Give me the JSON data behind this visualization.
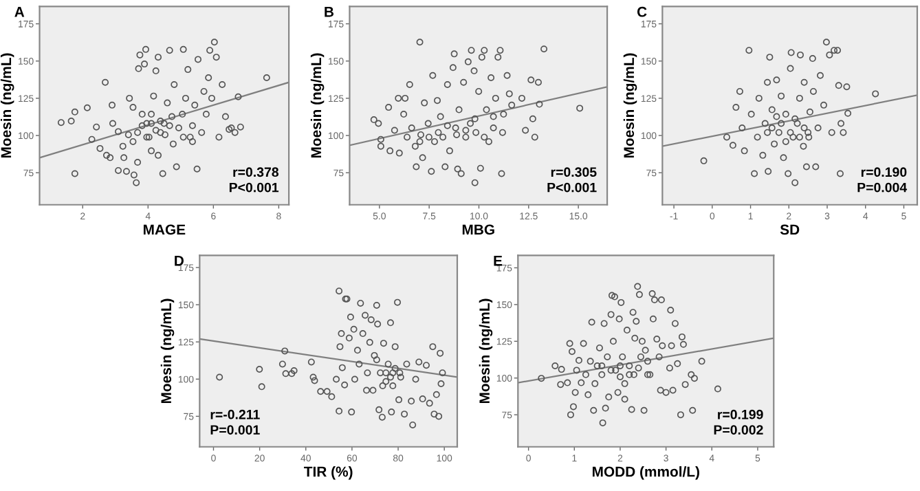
{
  "chart_data": [
    {
      "type": "scatter",
      "title": "A",
      "xlabel": "MAGE",
      "ylabel": "Moesin (ng/mL)",
      "xlim": [
        0.68,
        8.31
      ],
      "ylim": [
        53.5,
        186.7
      ],
      "xticks": [
        2,
        4,
        6,
        8
      ],
      "yticks": [
        75,
        100,
        125,
        150,
        175
      ],
      "grid": false,
      "legend": false,
      "annotations": [
        "r=0.378",
        "P<0.001"
      ],
      "series": [
        {
          "marker": "circle",
          "color": "#555555",
          "x": [
            1.34,
            1.65,
            1.76,
            1.76,
            2.14,
            2.28,
            2.42,
            2.53,
            2.69,
            2.73,
            2.84,
            2.9,
            2.92,
            3.09,
            3.09,
            3.23,
            3.26,
            3.34,
            3.43,
            3.54,
            3.57,
            3.64,
            3.68,
            3.71,
            3.75,
            3.89,
            3.93,
            3.96,
            4.03,
            4.1,
            4.17,
            4.24,
            4.31,
            4.38,
            4.45,
            4.49,
            4.59,
            4.66,
            4.73,
            4.77,
            4.8,
            4.87,
            4.94,
            5.05,
            5.08,
            5.15,
            5.22,
            5.29,
            5.36,
            5.43,
            5.5,
            5.53,
            5.64,
            5.71,
            5.78,
            5.85,
            5.89,
            5.95,
            6.03,
            6.09,
            6.17,
            6.27,
            6.37,
            6.48,
            6.55,
            6.66,
            6.76,
            6.83,
            7.63,
            3.68,
            3.82,
            3.96,
            4.1,
            4.24,
            4.38,
            4.52,
            4.66,
            3.4,
            3.54,
            3.82,
            4.1,
            4.31,
            5.08,
            5.36
          ],
          "values": [
            108.7,
            109.7,
            115.8,
            74.4,
            118.6,
            97.4,
            105.7,
            91.3,
            135.7,
            86.7,
            85.1,
            120.4,
            108.1,
            102.6,
            76.5,
            92.8,
            85.1,
            75.9,
            125,
            118.9,
            73.5,
            68.3,
            82,
            144.9,
            154.1,
            148,
            157.8,
            108.1,
            98.9,
            114.3,
            126.5,
            143.4,
            152.6,
            102,
            74.4,
            108.1,
            121.9,
            157.2,
            112.7,
            94.3,
            134.2,
            79,
            105.1,
            114.3,
            157.8,
            125,
            144.3,
            98.9,
            106.6,
            120.4,
            77.5,
            151.1,
            102,
            129.6,
            114.3,
            138.8,
            157.2,
            125,
            162.7,
            152.6,
            98.9,
            134.2,
            112.7,
            104.1,
            105.1,
            102,
            126,
            105.7,
            138.8,
            102,
            106.6,
            98.9,
            108.1,
            103.5,
            109.7,
            100.5,
            106.6,
            100.5,
            95.9,
            114.3,
            89.7,
            86.7,
            98.9,
            95.9
          ]
        },
        {
          "type": "line",
          "color": "#7f7f7f",
          "x": [
            0.68,
            8.31
          ],
          "values": [
            85.1,
            135.7
          ]
        }
      ]
    },
    {
      "type": "scatter",
      "title": "B",
      "xlabel": "MBG",
      "ylabel": "Moesin (ng/mL)",
      "xlim": [
        3.5,
        16.45
      ],
      "ylim": [
        53.5,
        186.7
      ],
      "xticks": [
        {
          "value": 5,
          "label": "5.0"
        },
        {
          "value": 7.5,
          "label": "7.5"
        },
        {
          "value": 10,
          "label": "10.0"
        },
        {
          "value": 12.5,
          "label": "12.5"
        },
        {
          "value": 15,
          "label": "15.0"
        }
      ],
      "yticks": [
        75,
        100,
        125,
        150,
        175
      ],
      "grid": false,
      "legend": false,
      "annotations": [
        "r=0.305",
        "P<0.001"
      ],
      "series": [
        {
          "marker": "circle",
          "color": "#555555",
          "x": [
            4.72,
            4.95,
            5.07,
            5.07,
            5.46,
            5.53,
            5.76,
            5.95,
            6.0,
            6.22,
            6.29,
            6.39,
            6.52,
            6.62,
            6.8,
            6.85,
            7.03,
            7.08,
            7.17,
            7.26,
            7.45,
            7.61,
            7.68,
            7.77,
            7.91,
            8.07,
            8.19,
            8.3,
            8.42,
            8.53,
            8.7,
            8.76,
            8.83,
            8.93,
            9.0,
            9.11,
            9.23,
            9.34,
            9.46,
            9.57,
            9.62,
            9.76,
            9.8,
            9.85,
            9.99,
            10.08,
            10.15,
            10.27,
            10.38,
            10.5,
            10.61,
            10.73,
            10.84,
            10.96,
            11.07,
            11.14,
            11.24,
            11.42,
            11.53,
            11.65,
            12.16,
            12.34,
            12.62,
            12.71,
            12.81,
            12.99,
            13.04,
            13.27,
            15.07,
            7.96,
            8.42,
            8.88,
            9.34,
            9.8,
            10.27,
            7.49,
            7.03,
            10.73,
            11.19
          ],
          "values": [
            110.6,
            108.1,
            97.4,
            92.8,
            118.9,
            89.7,
            103.5,
            125,
            88.2,
            114.3,
            125,
            98.9,
            134.2,
            105.1,
            92.8,
            79,
            162.7,
            100.5,
            85.1,
            121.9,
            108.1,
            75.9,
            140.3,
            95.9,
            123.5,
            112.7,
            98.9,
            79,
            134.2,
            89.7,
            145.6,
            154.8,
            105.1,
            77.5,
            117.3,
            74.4,
            135.7,
            98.9,
            149.5,
            108.1,
            157.2,
            143.4,
            68.3,
            102,
            129.6,
            78,
            152.6,
            157.2,
            117.3,
            95.9,
            138.8,
            105.1,
            125,
            152.6,
            157.2,
            74.4,
            114.3,
            140.3,
            128,
            120.4,
            125,
            103.5,
            137.3,
            111.2,
            98.9,
            135.7,
            121,
            158.1,
            118.3,
            102,
            106.6,
            100.5,
            103.5,
            111.2,
            98.9,
            98.9,
            95.9,
            112.7,
            102
          ]
        },
        {
          "type": "line",
          "color": "#7f7f7f",
          "x": [
            3.5,
            16.45
          ],
          "values": [
            93.4,
            132.7
          ]
        }
      ]
    },
    {
      "type": "scatter",
      "title": "C",
      "xlabel": "SD",
      "ylabel": "Moesin (ng/mL)",
      "xlim": [
        -1.3,
        5.35
      ],
      "ylim": [
        53.5,
        186.7
      ],
      "xticks": [
        -1,
        0,
        1,
        2,
        3,
        4,
        5
      ],
      "yticks": [
        75,
        100,
        125,
        150,
        175
      ],
      "grid": false,
      "legend": false,
      "annotations": [
        "r=0.190",
        "P=0.004"
      ],
      "series": [
        {
          "marker": "circle",
          "color": "#555555",
          "x": [
            -0.22,
            0.38,
            0.54,
            0.62,
            0.72,
            0.78,
            0.84,
            0.96,
            1.02,
            1.1,
            1.18,
            1.22,
            1.32,
            1.38,
            1.44,
            1.46,
            1.5,
            1.56,
            1.62,
            1.68,
            1.74,
            1.8,
            1.86,
            1.92,
            1.98,
            2.04,
            2.06,
            2.11,
            2.16,
            2.22,
            2.28,
            2.3,
            2.38,
            2.4,
            2.46,
            2.5,
            2.55,
            2.62,
            2.64,
            2.7,
            2.76,
            2.82,
            2.91,
            2.98,
            3.06,
            3.12,
            3.18,
            3.27,
            3.3,
            3.34,
            3.36,
            3.42,
            3.51,
            3.54,
            4.26,
            1.56,
            1.8,
            2.04,
            2.28,
            1.92,
            2.16,
            2.4,
            2.52,
            1.68,
            1.44
          ],
          "values": [
            83,
            98.9,
            93.4,
            118.9,
            129.6,
            105.1,
            89.7,
            157.2,
            114.3,
            74.4,
            98.9,
            125,
            86.7,
            108.1,
            135.7,
            75.9,
            152.6,
            117.3,
            94.3,
            137.3,
            102,
            126.5,
            85.1,
            114.3,
            74.4,
            145,
            155.7,
            98.9,
            68.3,
            108.1,
            125,
            154.1,
            92.8,
            135.7,
            79,
            102,
            115.8,
            151.7,
            129.6,
            79,
            105.1,
            140.3,
            120.4,
            162.7,
            154.1,
            102,
            157.2,
            157.2,
            133.6,
            74.4,
            108.1,
            102,
            132.7,
            114.9,
            128,
            105.1,
            108.1,
            102,
            98.9,
            95.9,
            111.2,
            105.1,
            98.9,
            112.7,
            102
          ]
        },
        {
          "type": "line",
          "color": "#7f7f7f",
          "x": [
            -1.3,
            5.35
          ],
          "values": [
            92.8,
            127.1
          ]
        }
      ]
    },
    {
      "type": "scatter",
      "title": "D",
      "xlabel": "TIR (%)",
      "ylabel": "Moesin (ng/mL)",
      "xlim": [
        -6,
        105.6
      ],
      "ylim": [
        54.5,
        183.2
      ],
      "xticks": [
        0,
        20,
        40,
        60,
        80,
        100
      ],
      "yticks": [
        75,
        100,
        125,
        150,
        175
      ],
      "grid": false,
      "legend": false,
      "annotations": [
        "r=-0.211",
        "P=0.001"
      ],
      "series": [
        {
          "marker": "circle",
          "color": "#555555",
          "x": [
            2.6,
            19.9,
            20.9,
            29.9,
            30.9,
            31.3,
            33.9,
            34.9,
            42.4,
            43.2,
            43.8,
            46.4,
            49.2,
            51.2,
            53.2,
            54.4,
            54.4,
            54.8,
            55.4,
            55.8,
            56.8,
            57.2,
            57.8,
            58.8,
            59.4,
            59.8,
            60.8,
            61.2,
            62.4,
            63.1,
            63.7,
            64.7,
            65.7,
            66.3,
            66.7,
            67.7,
            68.3,
            69.1,
            69.7,
            70.7,
            71.1,
            71.7,
            72.3,
            73.1,
            73.7,
            74.7,
            75.7,
            76.7,
            77.1,
            77.7,
            78.7,
            79.7,
            80.3,
            81.1,
            82.7,
            83.7,
            85.7,
            86.3,
            87.6,
            89.0,
            90.6,
            92.2,
            93.6,
            95.0,
            95.6,
            96.6,
            97.6,
            98.2,
            98.6,
            99.2,
            74.7,
            76.7,
            78.7,
            73.3,
            80.7,
            77.7,
            70.7
          ],
          "values": [
            101.3,
            106.6,
            94.9,
            110.1,
            118.9,
            103.7,
            103.7,
            105.7,
            111.5,
            101.3,
            99,
            91.7,
            91.7,
            88.2,
            99.9,
            159.2,
            78.5,
            121.8,
            130.6,
            107.7,
            96.1,
            153.9,
            153.9,
            127.6,
            141.7,
            77.9,
            133.5,
            99.9,
            119.4,
            110.1,
            151,
            130.6,
            142.9,
            92.5,
            104.2,
            124.7,
            139.9,
            92.5,
            115.9,
            149.6,
            137,
            79.4,
            104.2,
            74.4,
            124.1,
            98.4,
            110.1,
            137.9,
            77.9,
            104.2,
            121.8,
            151.6,
            86.1,
            101.3,
            76.5,
            110.1,
            85.2,
            69.2,
            99.9,
            111.5,
            86.7,
            109.3,
            83.8,
            121.8,
            76.5,
            89.6,
            75,
            117.4,
            96.9,
            104.2,
            104.2,
            101.3,
            107.2,
            95.5,
            104.2,
            95.5,
            113
          ]
        },
        {
          "type": "line",
          "color": "#7f7f7f",
          "x": [
            -6,
            105.6
          ],
          "values": [
            127,
            101.3
          ]
        }
      ]
    },
    {
      "type": "scatter",
      "title": "E",
      "xlabel": "MODD (mmol/L)",
      "ylabel": "Moesin (ng/mL)",
      "xlim": [
        -0.23,
        5.35
      ],
      "ylim": [
        53.2,
        183.5
      ],
      "xticks": [
        0,
        1,
        2,
        3,
        4,
        5
      ],
      "yticks": [
        75,
        100,
        125,
        150,
        175
      ],
      "grid": false,
      "legend": false,
      "annotations": [
        "r=0.199",
        "P=0.002"
      ],
      "series": [
        {
          "marker": "circle",
          "color": "#555555",
          "x": [
            0.28,
            0.58,
            0.7,
            0.72,
            0.85,
            0.9,
            0.92,
            0.95,
            0.98,
            1.02,
            1.05,
            1.1,
            1.15,
            1.2,
            1.25,
            1.3,
            1.35,
            1.38,
            1.42,
            1.45,
            1.5,
            1.55,
            1.6,
            1.62,
            1.65,
            1.68,
            1.72,
            1.75,
            1.8,
            1.82,
            1.85,
            1.88,
            1.9,
            1.95,
            1.98,
            2.0,
            2.02,
            2.05,
            2.1,
            2.15,
            2.2,
            2.25,
            2.28,
            2.3,
            2.32,
            2.35,
            2.38,
            2.42,
            2.45,
            2.48,
            2.52,
            2.55,
            2.6,
            2.65,
            2.7,
            2.72,
            2.75,
            2.8,
            2.85,
            2.88,
            2.9,
            2.92,
            3.0,
            3.08,
            3.1,
            3.12,
            3.15,
            3.2,
            3.25,
            3.32,
            3.35,
            3.38,
            3.42,
            3.55,
            3.58,
            3.62,
            3.78,
            4.13,
            1.8,
            2.0,
            2.2,
            2.4,
            2.6,
            2.1,
            1.6
          ],
          "values": [
            99.8,
            108.3,
            95.6,
            105.9,
            96.8,
            123.5,
            75,
            118,
            80.5,
            90.2,
            105.3,
            112,
            96.8,
            123.5,
            102.3,
            88.6,
            111.4,
            138,
            78,
            96.2,
            108.3,
            120.5,
            102.3,
            69.5,
            137.1,
            79.5,
            114.4,
            87.1,
            143.2,
            156.2,
            125,
            155.3,
            105.3,
            90.2,
            140.2,
            100.8,
            151.4,
            114.4,
            85.6,
            132.6,
            108.3,
            78.6,
            144.7,
            102.3,
            127.1,
            138.6,
            162.3,
            156.8,
            114.4,
            125,
            78,
            118.9,
            111.4,
            102.3,
            157.4,
            140.2,
            153.2,
            126.5,
            114.4,
            91.7,
            153.2,
            122,
            90.2,
            106.8,
            146.2,
            122,
            91.7,
            137.1,
            109.8,
            75,
            128,
            122.9,
            95.6,
            102.3,
            78,
            99.8,
            111.4,
            92.6,
            105.3,
            108.3,
            102.3,
            106.8,
            102.3,
            96.2,
            108.3
          ]
        },
        {
          "type": "line",
          "color": "#7f7f7f",
          "x": [
            -0.23,
            5.35
          ],
          "values": [
            96.8,
            127.1
          ]
        }
      ]
    }
  ]
}
